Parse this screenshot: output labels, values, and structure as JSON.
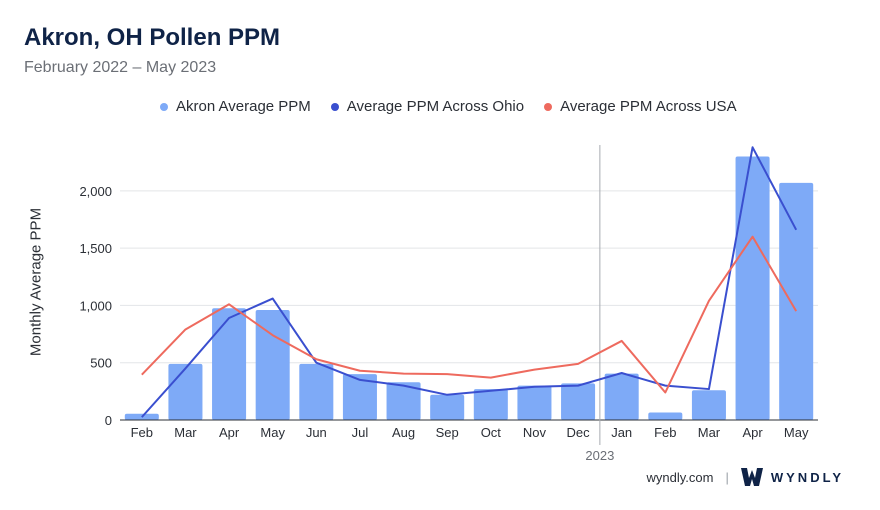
{
  "title": "Akron, OH Pollen PPM",
  "subtitle": "February 2022 – May 2023",
  "footer": {
    "site": "wyndly.com",
    "brand": "WYNDLY"
  },
  "colors": {
    "bar": "#7eaaf7",
    "ohio": "#3a4fcf",
    "usa": "#ee6a5e",
    "grid": "#e3e5e8",
    "divider": "#a7abb1",
    "title": "#0f2347"
  },
  "chart_data": {
    "type": "bar",
    "title": "Akron, OH Pollen PPM",
    "subtitle": "February 2022 – May 2023",
    "xlabel": "",
    "ylabel": "Monthly Average PPM",
    "categories": [
      "Feb",
      "Mar",
      "Apr",
      "May",
      "Jun",
      "Jul",
      "Aug",
      "Sep",
      "Oct",
      "Nov",
      "Dec",
      "Jan",
      "Feb",
      "Mar",
      "Apr",
      "May"
    ],
    "year_marker": {
      "label": "2023",
      "before_index": 11
    },
    "yticks": [
      0,
      500,
      1000,
      1500,
      2000
    ],
    "ytick_labels": [
      "0",
      "500",
      "1,000",
      "1,500",
      "2,000"
    ],
    "ylim": [
      0,
      2400
    ],
    "grid": true,
    "legend_position": "top",
    "series": [
      {
        "name": "Akron Average PPM",
        "type": "bar",
        "values": [
          55,
          490,
          975,
          960,
          490,
          400,
          330,
          220,
          270,
          300,
          320,
          405,
          65,
          260,
          2300,
          2070
        ]
      },
      {
        "name": "Average PPM Across Ohio",
        "type": "line",
        "values": [
          25,
          450,
          890,
          1060,
          500,
          350,
          300,
          220,
          255,
          290,
          300,
          410,
          300,
          270,
          2380,
          1660
        ]
      },
      {
        "name": "Average PPM Across USA",
        "type": "line",
        "values": [
          395,
          790,
          1010,
          740,
          530,
          430,
          405,
          400,
          370,
          440,
          490,
          690,
          240,
          1040,
          1600,
          950
        ]
      }
    ]
  }
}
